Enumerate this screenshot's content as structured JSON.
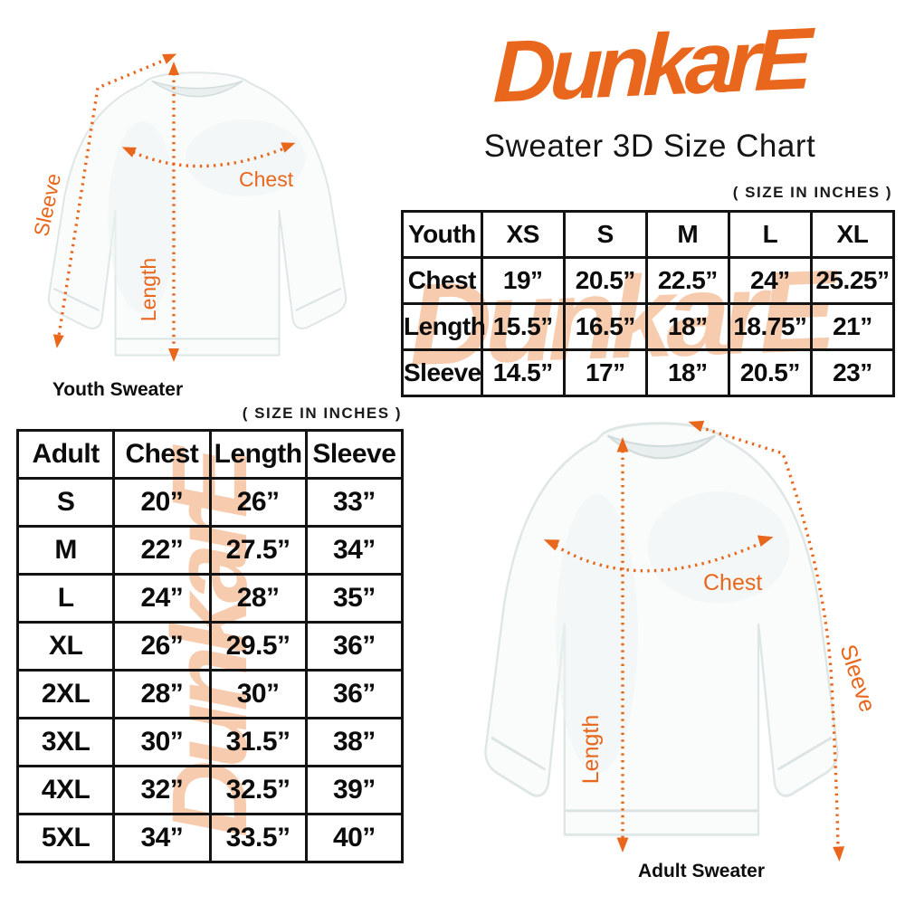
{
  "brand": {
    "name": "DunkarE",
    "subtitle": "Sweater 3D Size Chart",
    "accent_color": "#E8671C",
    "watermark_color": "#F7CBAE"
  },
  "youth_table": {
    "units_note": "( SIZE IN INCHES )",
    "header": [
      "Youth",
      "XS",
      "S",
      "M",
      "L",
      "XL"
    ],
    "rows": [
      [
        "Chest",
        "19”",
        "20.5”",
        "22.5”",
        "24”",
        "25.25”"
      ],
      [
        "Length",
        "15.5”",
        "16.5”",
        "18”",
        "18.75”",
        "21”"
      ],
      [
        "Sleeve",
        "14.5”",
        "17”",
        "18”",
        "20.5”",
        "23”"
      ]
    ]
  },
  "adult_table": {
    "units_note": "( SIZE IN INCHES )",
    "header": [
      "Adult",
      "Chest",
      "Length",
      "Sleeve"
    ],
    "rows": [
      [
        "S",
        "20”",
        "26”",
        "33”"
      ],
      [
        "M",
        "22”",
        "27.5”",
        "34”"
      ],
      [
        "L",
        "24”",
        "28”",
        "35”"
      ],
      [
        "XL",
        "26”",
        "29.5”",
        "36”"
      ],
      [
        "2XL",
        "28”",
        "30”",
        "36”"
      ],
      [
        "3XL",
        "30”",
        "31.5”",
        "38”"
      ],
      [
        "4XL",
        "32”",
        "32.5”",
        "39”"
      ],
      [
        "5XL",
        "34”",
        "33.5”",
        "40”"
      ]
    ]
  },
  "figures": {
    "youth": {
      "caption": "Youth Sweater",
      "chest_label": "Chest",
      "length_label": "Length",
      "sleeve_label": "Sleeve"
    },
    "adult": {
      "caption": "Adult Sweater",
      "chest_label": "Chest",
      "length_label": "Length",
      "sleeve_label": "Sleeve"
    }
  }
}
